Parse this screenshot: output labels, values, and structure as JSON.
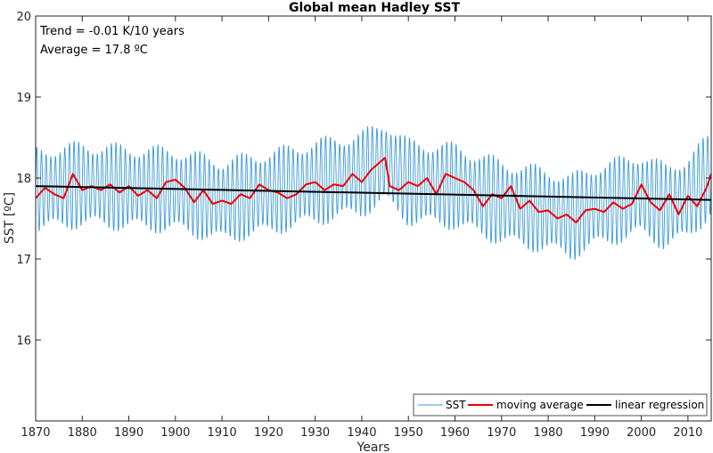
{
  "chart_data": {
    "type": "line",
    "title": "Global mean Hadley SST",
    "xlabel": "Years",
    "ylabel": "SST [ºC]",
    "xlim": [
      1870,
      2015
    ],
    "ylim": [
      15,
      20
    ],
    "x_ticks": [
      1870,
      1880,
      1890,
      1900,
      1910,
      1920,
      1930,
      1940,
      1950,
      1960,
      1970,
      1980,
      1990,
      2000,
      2010
    ],
    "y_ticks": [
      16,
      17,
      18,
      19,
      20
    ],
    "grid": false,
    "legend_placement": "bottom-right",
    "annotations": [
      "Trend = -0.01 K/10 years",
      "Average = 17.8 ºC"
    ],
    "series": [
      {
        "name": "SST",
        "color": "#3c9ad6",
        "style": "seasonal-cycle",
        "seasonal_amplitude": 0.55,
        "x": [
          1870,
          1880,
          1890,
          1900,
          1910,
          1920,
          1930,
          1940,
          1945,
          1950,
          1960,
          1970,
          1980,
          1985,
          1990,
          2000,
          2005,
          2010,
          2015
        ],
        "values": [
          17.85,
          17.92,
          17.88,
          17.85,
          17.72,
          17.82,
          17.95,
          18.05,
          18.2,
          17.95,
          17.9,
          17.7,
          17.6,
          17.52,
          17.65,
          17.8,
          17.65,
          17.75,
          18.05
        ]
      },
      {
        "name": "moving average",
        "color": "#ee0000",
        "x": [
          1870,
          1872,
          1874,
          1876,
          1878,
          1880,
          1882,
          1884,
          1886,
          1888,
          1890,
          1892,
          1894,
          1896,
          1898,
          1900,
          1902,
          1904,
          1906,
          1908,
          1910,
          1912,
          1914,
          1916,
          1918,
          1920,
          1922,
          1924,
          1926,
          1928,
          1930,
          1932,
          1934,
          1936,
          1938,
          1940,
          1942,
          1944,
          1945,
          1946,
          1948,
          1950,
          1952,
          1954,
          1956,
          1958,
          1960,
          1962,
          1964,
          1966,
          1968,
          1970,
          1972,
          1974,
          1976,
          1978,
          1980,
          1982,
          1984,
          1986,
          1988,
          1990,
          1992,
          1994,
          1996,
          1998,
          2000,
          2002,
          2004,
          2006,
          2008,
          2010,
          2012,
          2014,
          2015
        ],
        "values": [
          17.75,
          17.88,
          17.8,
          17.75,
          18.05,
          17.85,
          17.9,
          17.85,
          17.92,
          17.82,
          17.9,
          17.78,
          17.85,
          17.75,
          17.95,
          17.98,
          17.88,
          17.7,
          17.85,
          17.68,
          17.72,
          17.68,
          17.8,
          17.75,
          17.92,
          17.85,
          17.82,
          17.75,
          17.8,
          17.92,
          17.95,
          17.85,
          17.92,
          17.9,
          18.05,
          17.95,
          18.1,
          18.2,
          18.25,
          17.9,
          17.85,
          17.95,
          17.9,
          18.0,
          17.8,
          18.05,
          18.0,
          17.95,
          17.85,
          17.65,
          17.8,
          17.75,
          17.9,
          17.62,
          17.72,
          17.58,
          17.6,
          17.5,
          17.55,
          17.45,
          17.6,
          17.62,
          17.58,
          17.7,
          17.62,
          17.68,
          17.92,
          17.7,
          17.6,
          17.8,
          17.55,
          17.78,
          17.65,
          17.88,
          18.05
        ]
      },
      {
        "name": "linear regression",
        "color": "#000000",
        "x": [
          1870,
          2015
        ],
        "values": [
          17.9,
          17.73
        ]
      }
    ]
  }
}
